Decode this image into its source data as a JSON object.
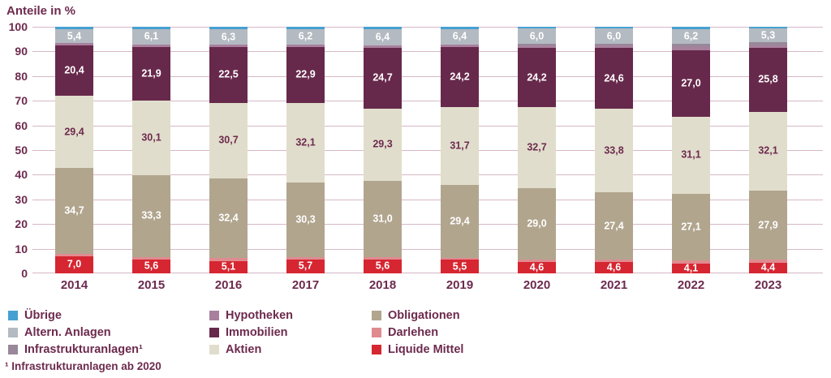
{
  "title": "Anteile in %",
  "footnote": "¹ Infrastrukturanlagen ab 2020",
  "text_color": "#6d2a4e",
  "gridline_color": "#d6b8c7",
  "legend": {
    "position": "bottom",
    "columns": [
      [
        {
          "key": "uebrige",
          "label": "Übrige"
        },
        {
          "key": "altern_anlagen",
          "label": "Altern. Anlagen"
        },
        {
          "key": "infrastrukturanlagen",
          "label": "Infrastrukturanlagen¹"
        }
      ],
      [
        {
          "key": "hypotheken",
          "label": "Hypotheken"
        },
        {
          "key": "immobilien",
          "label": "Immobilien"
        },
        {
          "key": "aktien",
          "label": "Aktien"
        }
      ],
      [
        {
          "key": "obligationen",
          "label": "Obligationen"
        },
        {
          "key": "darlehen",
          "label": "Darlehen"
        },
        {
          "key": "liquide_mittel",
          "label": "Liquide Mittel"
        }
      ]
    ]
  },
  "chart_data": {
    "type": "bar",
    "stacked": true,
    "title": "Anteile in %",
    "xlabel": "",
    "ylabel": "Anteile in %",
    "ylim": [
      0,
      100
    ],
    "yticks": [
      0,
      10,
      20,
      30,
      40,
      50,
      60,
      70,
      80,
      90,
      100
    ],
    "grid": true,
    "decimal_separator": ",",
    "categories": [
      "2014",
      "2015",
      "2016",
      "2017",
      "2018",
      "2019",
      "2020",
      "2021",
      "2022",
      "2023"
    ],
    "series": [
      {
        "key": "liquide_mittel",
        "name": "Liquide Mittel",
        "color": "#d62631",
        "dotted": false,
        "labels_shown": true,
        "label_color": "#ffffff",
        "values": [
          7.0,
          5.6,
          5.1,
          5.7,
          5.6,
          5.5,
          4.6,
          4.6,
          4.1,
          4.4
        ]
      },
      {
        "key": "darlehen",
        "name": "Darlehen",
        "color": "#e08b90",
        "dotted": true,
        "labels_shown": false,
        "estimated": true,
        "values": [
          1.0,
          1.0,
          1.0,
          0.9,
          1.0,
          0.9,
          1.0,
          0.9,
          1.2,
          1.2
        ]
      },
      {
        "key": "obligationen",
        "name": "Obligationen",
        "color": "#b1a58e",
        "dotted": false,
        "labels_shown": true,
        "label_color": "#ffffff",
        "values": [
          34.7,
          33.3,
          32.4,
          30.3,
          31.0,
          29.4,
          29.0,
          27.4,
          27.1,
          27.9
        ]
      },
      {
        "key": "aktien",
        "name": "Aktien",
        "color": "#e1ddcc",
        "dotted": false,
        "labels_shown": true,
        "label_color": "#6d2a4e",
        "values": [
          29.4,
          30.1,
          30.7,
          32.1,
          29.3,
          31.7,
          32.7,
          33.8,
          31.1,
          32.1
        ]
      },
      {
        "key": "immobilien",
        "name": "Immobilien",
        "color": "#67294b",
        "dotted": true,
        "labels_shown": true,
        "label_color": "#ffffff",
        "values": [
          20.4,
          21.9,
          22.5,
          22.9,
          24.7,
          24.2,
          24.2,
          24.6,
          27.0,
          25.8
        ]
      },
      {
        "key": "hypotheken",
        "name": "Hypotheken",
        "color": "#a8809d",
        "dotted": false,
        "labels_shown": false,
        "estimated": true,
        "values": [
          1.0,
          1.0,
          1.0,
          1.0,
          1.0,
          1.0,
          1.0,
          1.0,
          1.2,
          1.2
        ]
      },
      {
        "key": "infrastrukturanlagen",
        "name": "Infrastrukturanlagen¹",
        "color": "#98889a",
        "dotted": true,
        "labels_shown": false,
        "estimated": true,
        "values": [
          0,
          0,
          0,
          0,
          0,
          0,
          0.7,
          0.9,
          1.3,
          1.3
        ]
      },
      {
        "key": "altern_anlagen",
        "name": "Altern. Anlagen",
        "color": "#b3bac1",
        "dotted": false,
        "labels_shown": true,
        "label_color": "#ffffff",
        "values": [
          5.4,
          6.1,
          6.3,
          6.2,
          6.4,
          6.4,
          6.0,
          6.0,
          6.2,
          5.3
        ]
      },
      {
        "key": "uebrige",
        "name": "Übrige",
        "color": "#45a1d2",
        "dotted": true,
        "labels_shown": false,
        "estimated": true,
        "values": [
          1.1,
          1.0,
          1.0,
          0.9,
          1.0,
          0.9,
          0.8,
          0.8,
          0.8,
          0.8
        ]
      }
    ]
  }
}
